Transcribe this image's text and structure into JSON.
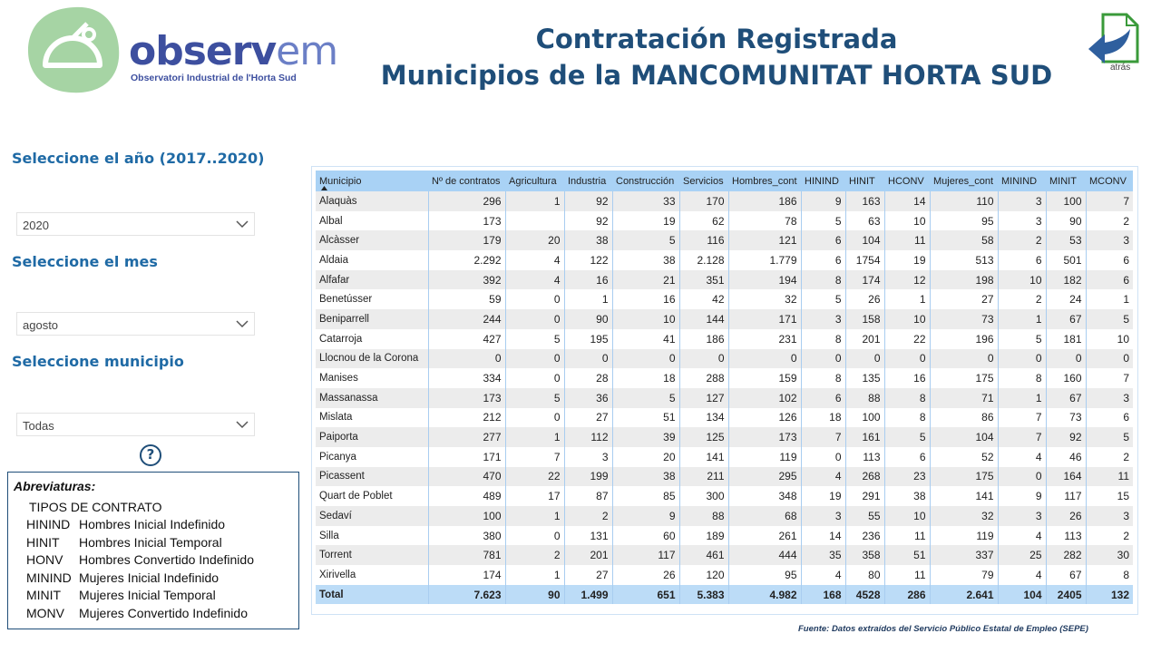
{
  "header": {
    "logo_main": "observ",
    "logo_accent": "em",
    "logo_subtitle": "Observatori Industrial de l'Horta Sud",
    "title_line1": "Contratación Registrada",
    "title_line2": "Municipios de la MANCOMUNITAT HORTA SUD",
    "back_label": "atrás"
  },
  "filters": [
    {
      "label": "Seleccione el año (2017..2020)",
      "value": "2020"
    },
    {
      "label": "Seleccione el mes",
      "value": "agosto"
    },
    {
      "label": "Seleccione municipio",
      "value": "Todas"
    }
  ],
  "help": "?",
  "abbreviations": {
    "title": "Abreviaturas:",
    "subtitle": "TIPOS DE CONTRATO",
    "items": [
      [
        "HININD",
        "Hombres Inicial Indefinido"
      ],
      [
        "HINIT",
        "Hombres Inicial Temporal"
      ],
      [
        "HONV",
        "Hombres Convertido Indefinido"
      ],
      [
        "MININD",
        "Mujeres Inicial Indefinido"
      ],
      [
        "MINIT",
        "Mujeres Inicial Temporal"
      ],
      [
        "MONV",
        "Mujeres Convertido Indefinido"
      ]
    ]
  },
  "table": {
    "columns": [
      "Municipio",
      "Nº de contratos",
      "Agricultura",
      "Industria",
      "Construcción",
      "Servicios",
      "Hombres_cont",
      "HININD",
      "HINIT",
      "HCONV",
      "Mujeres_cont",
      "MININD",
      "MINIT",
      "MCONV"
    ],
    "rows": [
      [
        "Alaquàs",
        "296",
        "1",
        "92",
        "33",
        "170",
        "186",
        "9",
        "163",
        "14",
        "110",
        "3",
        "100",
        "7"
      ],
      [
        "Albal",
        "173",
        null,
        "92",
        "19",
        "62",
        "78",
        "5",
        "63",
        "10",
        "95",
        "3",
        "90",
        "2"
      ],
      [
        "Alcàsser",
        "179",
        "20",
        "38",
        "5",
        "116",
        "121",
        "6",
        "104",
        "11",
        "58",
        "2",
        "53",
        "3"
      ],
      [
        "Aldaia",
        "2.292",
        "4",
        "122",
        "38",
        "2.128",
        "1.779",
        "6",
        "1754",
        "19",
        "513",
        "6",
        "501",
        "6"
      ],
      [
        "Alfafar",
        "392",
        "4",
        "16",
        "21",
        "351",
        "194",
        "8",
        "174",
        "12",
        "198",
        "10",
        "182",
        "6"
      ],
      [
        "Benetússer",
        "59",
        "0",
        "1",
        "16",
        "42",
        "32",
        "5",
        "26",
        "1",
        "27",
        "2",
        "24",
        "1"
      ],
      [
        "Beniparrell",
        "244",
        "0",
        "90",
        "10",
        "144",
        "171",
        "3",
        "158",
        "10",
        "73",
        "1",
        "67",
        "5"
      ],
      [
        "Catarroja",
        "427",
        "5",
        "195",
        "41",
        "186",
        "231",
        "8",
        "201",
        "22",
        "196",
        "5",
        "181",
        "10"
      ],
      [
        "Llocnou de la Corona",
        "0",
        "0",
        "0",
        "0",
        "0",
        "0",
        "0",
        "0",
        "0",
        "0",
        "0",
        "0",
        "0"
      ],
      [
        "Manises",
        "334",
        "0",
        "28",
        "18",
        "288",
        "159",
        "8",
        "135",
        "16",
        "175",
        "8",
        "160",
        "7"
      ],
      [
        "Massanassa",
        "173",
        "5",
        "36",
        "5",
        "127",
        "102",
        "6",
        "88",
        "8",
        "71",
        "1",
        "67",
        "3"
      ],
      [
        "Mislata",
        "212",
        "0",
        "27",
        "51",
        "134",
        "126",
        "18",
        "100",
        "8",
        "86",
        "7",
        "73",
        "6"
      ],
      [
        "Paiporta",
        "277",
        "1",
        "112",
        "39",
        "125",
        "173",
        "7",
        "161",
        "5",
        "104",
        "7",
        "92",
        "5"
      ],
      [
        "Picanya",
        "171",
        "7",
        "3",
        "20",
        "141",
        "119",
        "0",
        "113",
        "6",
        "52",
        "4",
        "46",
        "2"
      ],
      [
        "Picassent",
        "470",
        "22",
        "199",
        "38",
        "211",
        "295",
        "4",
        "268",
        "23",
        "175",
        "0",
        "164",
        "11"
      ],
      [
        "Quart de Poblet",
        "489",
        "17",
        "87",
        "85",
        "300",
        "348",
        "19",
        "291",
        "38",
        "141",
        "9",
        "117",
        "15"
      ],
      [
        "Sedaví",
        "100",
        "1",
        "2",
        "9",
        "88",
        "68",
        "3",
        "55",
        "10",
        "32",
        "3",
        "26",
        "3"
      ],
      [
        "Silla",
        "380",
        "0",
        "131",
        "60",
        "189",
        "261",
        "14",
        "236",
        "11",
        "119",
        "4",
        "113",
        "2"
      ],
      [
        "Torrent",
        "781",
        "2",
        "201",
        "117",
        "461",
        "444",
        "35",
        "358",
        "51",
        "337",
        "25",
        "282",
        "30"
      ],
      [
        "Xirivella",
        "174",
        "1",
        "27",
        "26",
        "120",
        "95",
        "4",
        "80",
        "11",
        "79",
        "4",
        "67",
        "8"
      ]
    ],
    "total": [
      "Total",
      "7.623",
      "90",
      "1.499",
      "651",
      "5.383",
      "4.982",
      "168",
      "4528",
      "286",
      "2.641",
      "104",
      "2405",
      "132"
    ]
  },
  "footer": "Fuente: Datos extraídos del Servicio Público Estatal de Empleo (SEPE)"
}
